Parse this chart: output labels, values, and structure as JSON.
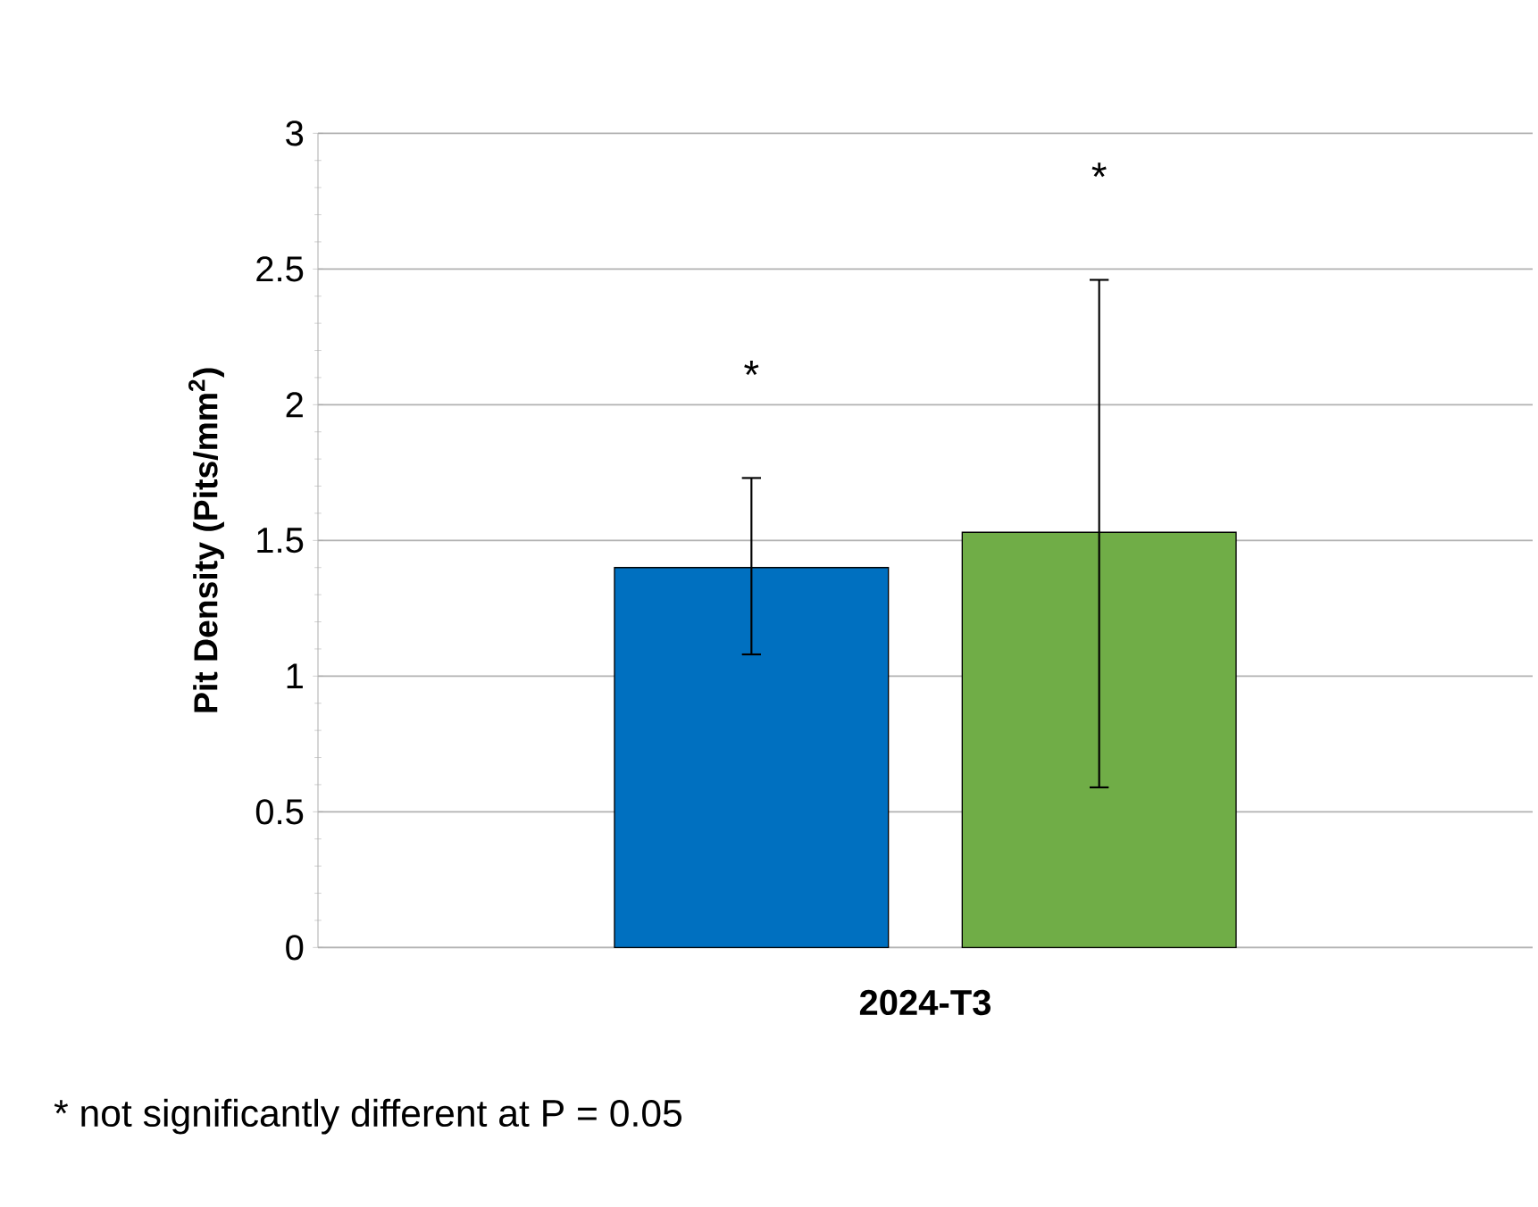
{
  "chart_data": {
    "type": "bar",
    "ylabel": "Pit Density (Pits/mm$^{2}$)",
    "categories": [
      "2024-T3"
    ],
    "series": [
      {
        "color": "#0070c0",
        "values": [
          1.4
        ],
        "errors": [
          [
            1.08,
            1.73
          ]
        ]
      },
      {
        "color": "#70ad47",
        "values": [
          1.53
        ],
        "errors": [
          [
            0.59,
            2.46
          ]
        ]
      }
    ],
    "ylim": [
      0,
      3
    ],
    "yticks": [
      0,
      0.5,
      1,
      1.5,
      2,
      2.5,
      3
    ],
    "grid": "y",
    "annotations": [
      "*",
      "*",
      "* not significantly different at P = 0.05"
    ]
  }
}
